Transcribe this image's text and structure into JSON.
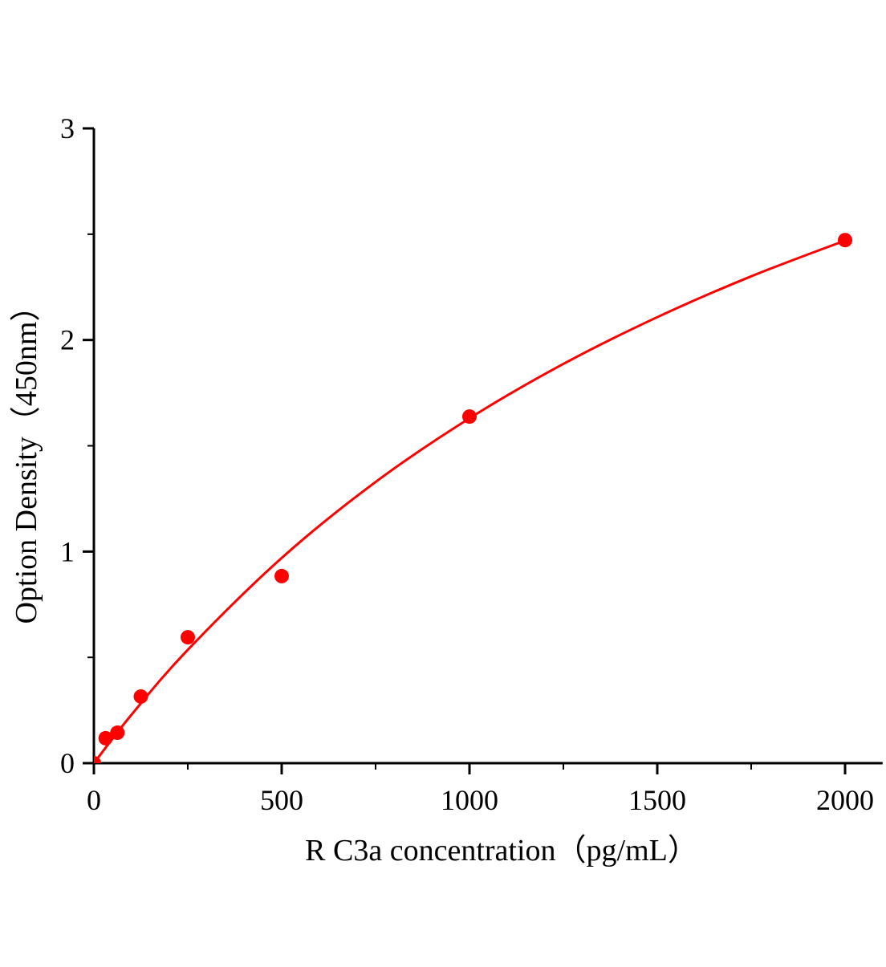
{
  "chart_data": {
    "type": "scatter",
    "title": "",
    "xlabel": "R C3a  concentration（pg/mL）",
    "ylabel": "Option Density（450nm）",
    "xlim": [
      0,
      2100
    ],
    "ylim": [
      0,
      3
    ],
    "x_ticks": [
      "0",
      "500",
      "1000",
      "1500",
      "2000"
    ],
    "y_ticks": [
      "0",
      "1",
      "2",
      "3"
    ],
    "grid": false,
    "legend": "none",
    "color": "#ff0000",
    "points": {
      "x": [
        0,
        31.25,
        62.5,
        125,
        250,
        500,
        1000,
        2000
      ],
      "y": [
        0.0,
        0.118,
        0.144,
        0.315,
        0.595,
        0.884,
        1.638,
        2.472
      ]
    },
    "fit_curve": {
      "x": [
        0,
        100,
        250,
        500,
        750,
        1000,
        1250,
        1500,
        1750,
        2000
      ],
      "y": [
        0,
        0.229,
        0.536,
        0.97,
        1.329,
        1.63,
        1.887,
        2.108,
        2.301,
        2.47
      ]
    }
  }
}
